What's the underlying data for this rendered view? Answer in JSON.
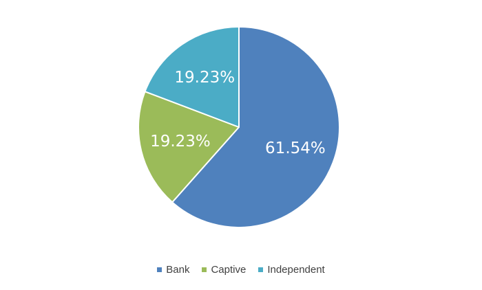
{
  "chart_data": {
    "type": "pie",
    "title": "",
    "slices": [
      {
        "name": "Bank",
        "value": 61.54,
        "label": "61.54%",
        "color": "#4F81BD"
      },
      {
        "name": "Captive",
        "value": 19.23,
        "label": "19.23%",
        "color": "#9BBB59"
      },
      {
        "name": "Independent",
        "value": 19.23,
        "label": "19.23%",
        "color": "#4BACC6"
      }
    ],
    "start_angle_deg": 0,
    "direction": "clockwise",
    "legend_position": "bottom"
  }
}
